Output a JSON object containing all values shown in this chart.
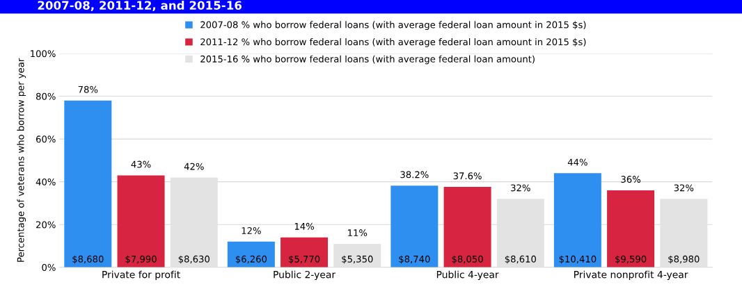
{
  "chart_data": {
    "type": "bar",
    "title": "2007-08, 2011-12, and 2015-16",
    "ylabel": "Percentage of veterans who borrow per year",
    "categories": [
      "Private for profit",
      "Public 2-year",
      "Public 4-year",
      "Private nonprofit 4-year"
    ],
    "series": [
      {
        "name": "2007-08 % who borrow federal loans (with average federal loan amount in 2015 $s)",
        "color": "#2e8ff0",
        "values": [
          78,
          12,
          38.2,
          44
        ],
        "value_labels": [
          "78%",
          "12%",
          "38.2%",
          "44%"
        ]
      },
      {
        "name": "2011-12 % who borrow federal loans (with average federal loan amount in 2015 $s)",
        "color": "#d72440",
        "values": [
          43,
          14,
          37.6,
          36
        ],
        "value_labels": [
          "43%",
          "14%",
          "37.6%",
          "36%"
        ]
      },
      {
        "name": "2015-16 % who borrow federal loans (with average federal loan amount)",
        "color": "#e3e3e3",
        "values": [
          42,
          11,
          32,
          32
        ],
        "value_labels": [
          "42%",
          "11%",
          "32%",
          "32%"
        ]
      }
    ],
    "annotations": [
      "$8,680",
      "$6,260",
      "$8,740",
      "$10,410",
      "$7,990",
      "$5,770",
      "$8,050",
      "$9,590",
      "$8,630",
      "$5,350",
      "$8,610",
      "$8,980"
    ],
    "ylim": [
      0,
      100
    ],
    "yticks": [
      {
        "value": 0,
        "label": "0%"
      },
      {
        "value": 20,
        "label": "20%"
      },
      {
        "value": 40,
        "label": "40%"
      },
      {
        "value": 60,
        "label": "60%"
      },
      {
        "value": 80,
        "label": "80%"
      },
      {
        "value": 100,
        "label": "100%"
      }
    ],
    "grid": "y",
    "legend": "top"
  }
}
